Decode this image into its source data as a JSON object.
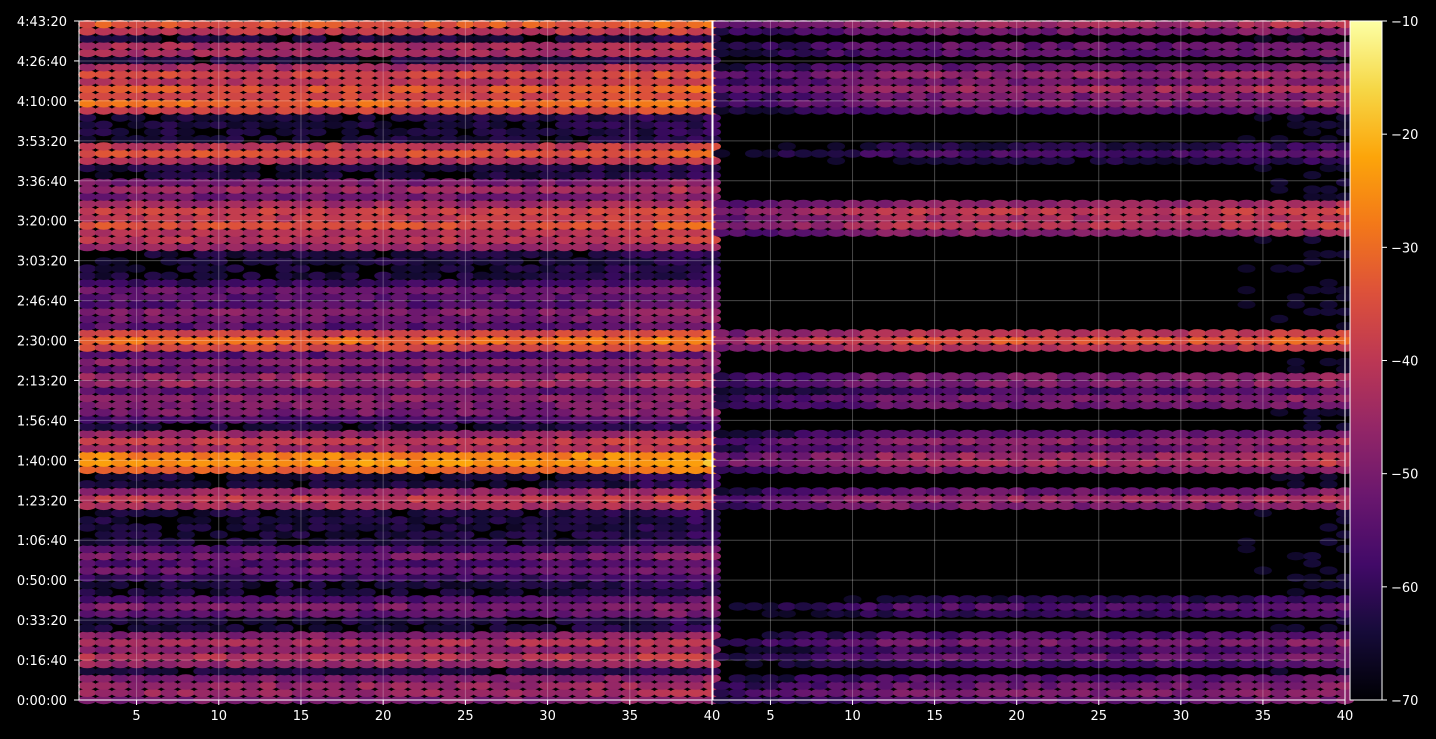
{
  "chart_data": {
    "type": "heatmap",
    "title": "",
    "xlabel": "",
    "ylabel": "",
    "panels": [
      {
        "name": "",
        "xlim": [
          1.5,
          40
        ],
        "x_ticks": [
          "5",
          "10",
          "15",
          "20",
          "25",
          "30",
          "35",
          "40"
        ]
      },
      {
        "name": "",
        "xlim": [
          1.5,
          40
        ],
        "x_ticks": [
          "5",
          "10",
          "15",
          "20",
          "25",
          "30",
          "35",
          "40"
        ]
      }
    ],
    "ylim_seconds": [
      0,
      17000
    ],
    "y_ticks": [
      "0:00:00",
      "0:16:40",
      "0:33:20",
      "0:50:00",
      "1:06:40",
      "1:23:20",
      "1:40:00",
      "1:56:40",
      "2:13:20",
      "2:30:00",
      "2:46:40",
      "3:03:20",
      "3:20:00",
      "3:36:40",
      "3:53:20",
      "4:10:00",
      "4:26:40",
      "4:43:20"
    ],
    "colorbar": {
      "min": -70,
      "max": -10,
      "ticks": [
        "−10",
        "−20",
        "−30",
        "−40",
        "−50",
        "−60",
        "−70"
      ],
      "colormap": "inferno"
    },
    "grid": true,
    "series": [
      {
        "name": "",
        "peaks": [
          {
            "t": 16920,
            "v": -33
          },
          {
            "t": 16300,
            "v": -40
          },
          {
            "t": 15650,
            "v": -36
          },
          {
            "t": 15300,
            "v": -34
          },
          {
            "t": 14950,
            "v": -30
          },
          {
            "t": 13700,
            "v": -34
          },
          {
            "t": 12800,
            "v": -44
          },
          {
            "t": 12200,
            "v": -36
          },
          {
            "t": 11900,
            "v": -34
          },
          {
            "t": 11500,
            "v": -40
          },
          {
            "t": 10200,
            "v": -50
          },
          {
            "t": 9700,
            "v": -48
          },
          {
            "t": 9500,
            "v": -50
          },
          {
            "t": 9000,
            "v": -30
          },
          {
            "t": 8450,
            "v": -48
          },
          {
            "t": 8000,
            "v": -42
          },
          {
            "t": 7500,
            "v": -45
          },
          {
            "t": 7200,
            "v": -50
          },
          {
            "t": 6450,
            "v": -38
          },
          {
            "t": 6000,
            "v": -22
          },
          {
            "t": 5000,
            "v": -38
          },
          {
            "t": 3600,
            "v": -50
          },
          {
            "t": 3250,
            "v": -52
          },
          {
            "t": 2300,
            "v": -48
          },
          {
            "t": 1450,
            "v": -42
          },
          {
            "t": 1050,
            "v": -40
          },
          {
            "t": 400,
            "v": -44
          },
          {
            "t": 150,
            "v": -44
          }
        ]
      },
      {
        "name": "",
        "peaks": [
          {
            "t": 16920,
            "v": -44
          },
          {
            "t": 16300,
            "v": -50
          },
          {
            "t": 15650,
            "v": -46
          },
          {
            "t": 15300,
            "v": -44
          },
          {
            "t": 14950,
            "v": -48
          },
          {
            "t": 13700,
            "v": -56
          },
          {
            "t": 12200,
            "v": -38
          },
          {
            "t": 11900,
            "v": -40
          },
          {
            "t": 9000,
            "v": -34
          },
          {
            "t": 8000,
            "v": -46
          },
          {
            "t": 7500,
            "v": -48
          },
          {
            "t": 6450,
            "v": -46
          },
          {
            "t": 6000,
            "v": -40
          },
          {
            "t": 5000,
            "v": -44
          },
          {
            "t": 2300,
            "v": -54
          },
          {
            "t": 1450,
            "v": -50
          },
          {
            "t": 1050,
            "v": -52
          },
          {
            "t": 400,
            "v": -50
          },
          {
            "t": 150,
            "v": -48
          }
        ]
      }
    ]
  }
}
